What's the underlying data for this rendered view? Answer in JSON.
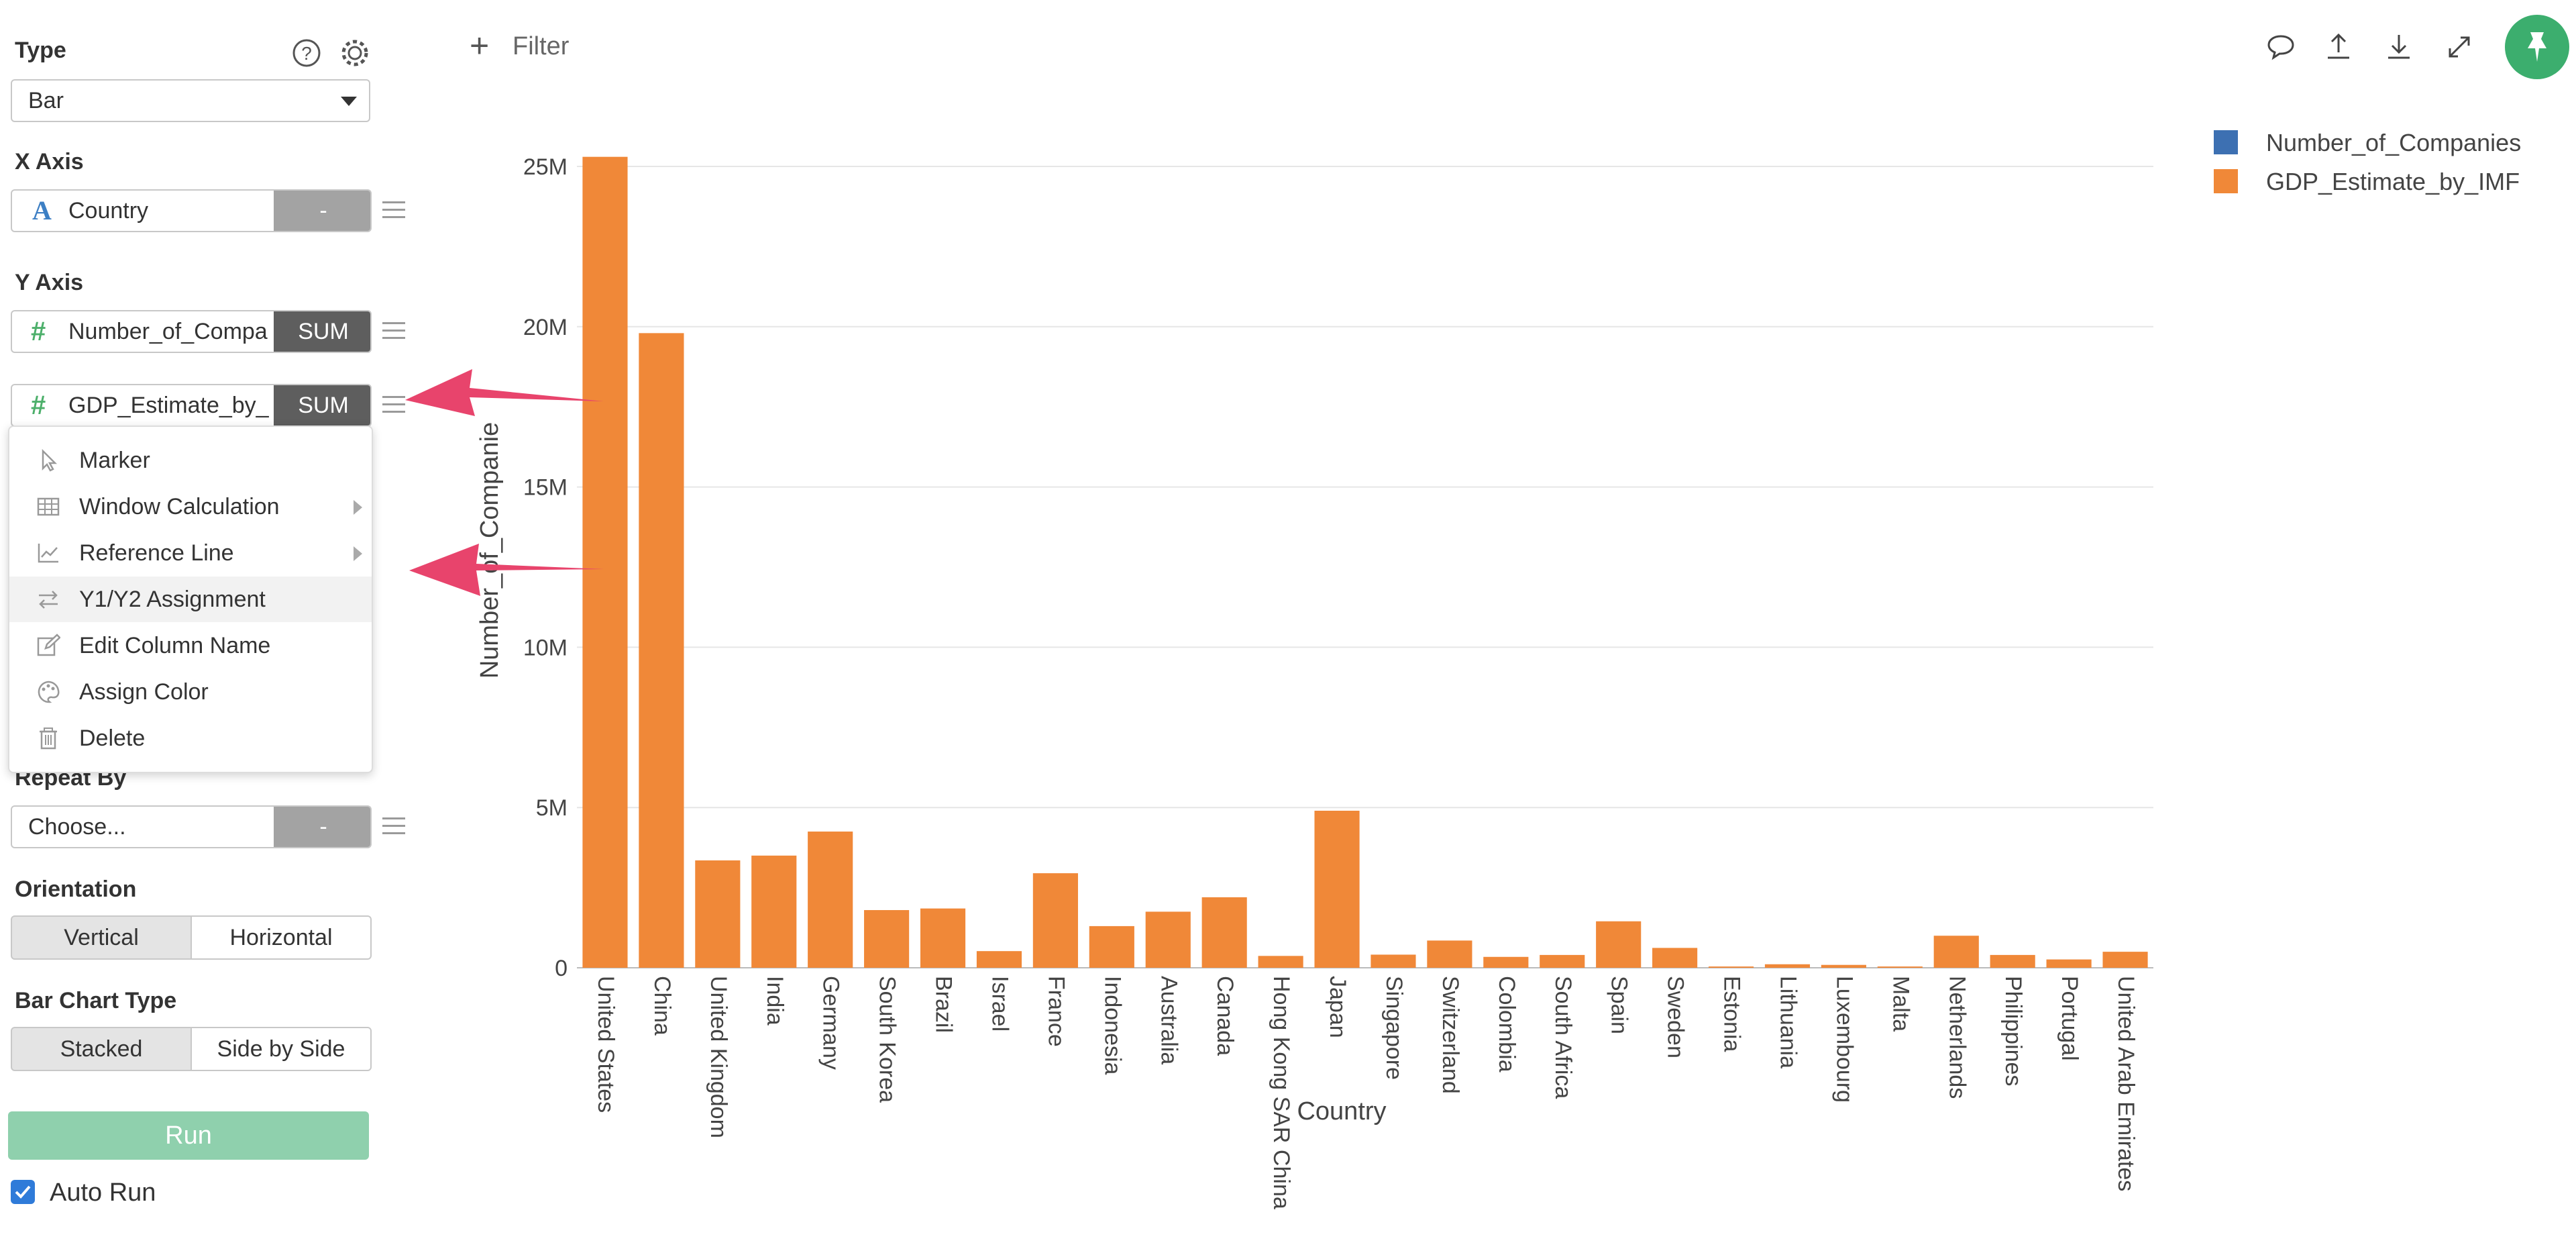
{
  "panel": {
    "type_label": "Type",
    "type_value": "Bar",
    "x_axis_label": "X Axis",
    "x_field": {
      "type_glyph": "A",
      "name": "Country",
      "agg": "-"
    },
    "y_axis_label": "Y Axis",
    "y_fields": [
      {
        "type_glyph": "#",
        "name": "Number_of_Compa",
        "agg": "SUM"
      },
      {
        "type_glyph": "#",
        "name": "GDP_Estimate_by_",
        "agg": "SUM"
      }
    ],
    "repeat_label": "Repeat By",
    "repeat_value": "Choose...",
    "repeat_agg": "-",
    "orientation_label": "Orientation",
    "orientation_options": [
      "Vertical",
      "Horizontal"
    ],
    "bar_type_label": "Bar Chart Type",
    "bar_type_options": [
      "Stacked",
      "Side by Side"
    ],
    "run_label": "Run",
    "auto_run_label": "Auto Run",
    "auto_run_checked": true
  },
  "context_menu": {
    "items": [
      {
        "label": "Marker",
        "icon": "cursor-icon"
      },
      {
        "label": "Window Calculation",
        "icon": "table-icon"
      },
      {
        "label": "Reference Line",
        "icon": "line-chart-icon"
      },
      {
        "label": "Y1/Y2 Assignment",
        "icon": "swap-icon"
      },
      {
        "label": "Edit Column Name",
        "icon": "edit-icon"
      },
      {
        "label": "Assign Color",
        "icon": "palette-icon"
      },
      {
        "label": "Delete",
        "icon": "trash-icon"
      }
    ]
  },
  "toolbar": {
    "filter_label": "Filter"
  },
  "colors": {
    "bar": "#f08838",
    "series1": "#3d70b2",
    "run": "#8fd0ad",
    "pin": "#3cae6e",
    "arrow": "#e8446c"
  },
  "chart_data": {
    "type": "bar",
    "xlabel": "Country",
    "ylabel": "Number_of_Companie",
    "ylim": [
      0,
      25000000
    ],
    "yticks": [
      "0",
      "5M",
      "10M",
      "15M",
      "20M",
      "25M"
    ],
    "legend": [
      "Number_of_Companies",
      "GDP_Estimate_by_IMF"
    ],
    "categories": [
      "United States",
      "China",
      "United Kingdom",
      "India",
      "Germany",
      "South Korea",
      "Brazil",
      "Israel",
      "France",
      "Indonesia",
      "Australia",
      "Canada",
      "Hong Kong SAR China",
      "Japan",
      "Singapore",
      "Switzerland",
      "Colombia",
      "South Africa",
      "Spain",
      "Sweden",
      "Estonia",
      "Lithuania",
      "Luxembourg",
      "Malta",
      "Netherlands",
      "Philippines",
      "Portugal",
      "United Arab Emirates"
    ],
    "series": [
      {
        "name": "GDP_Estimate_by_IMF",
        "values": [
          25300000,
          19800000,
          3350000,
          3500000,
          4250000,
          1800000,
          1850000,
          520000,
          2950000,
          1300000,
          1750000,
          2200000,
          370000,
          4900000,
          410000,
          850000,
          340000,
          400000,
          1450000,
          620000,
          40000,
          110000,
          90000,
          40000,
          1000000,
          400000,
          260000,
          500000
        ]
      }
    ]
  }
}
